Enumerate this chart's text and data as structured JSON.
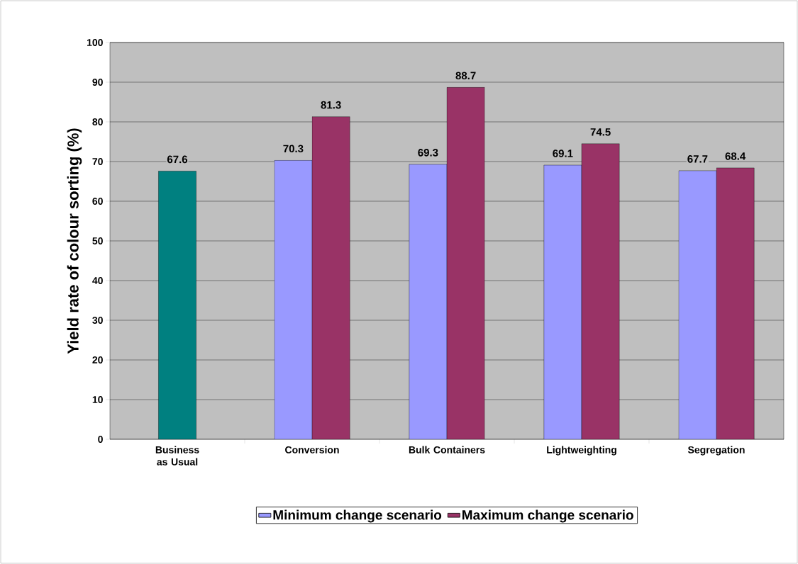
{
  "chart_data": {
    "type": "bar",
    "ylabel": "Yield rate of colour sorting (%)",
    "categories": [
      "Business as Usual",
      "Conversion",
      "Bulk Containers",
      "Lightweighting",
      "Segregation"
    ],
    "series": [
      {
        "color": "#008080",
        "values": [
          67.6,
          null,
          null,
          null,
          null
        ]
      },
      {
        "name": "Minimum change scenario",
        "color": "#9999ff",
        "values": [
          null,
          70.3,
          69.3,
          69.1,
          67.7
        ]
      },
      {
        "name": "Maximum change scenario",
        "color": "#993366",
        "values": [
          null,
          81.3,
          88.7,
          74.5,
          68.4
        ]
      }
    ],
    "ylim": [
      0,
      100
    ],
    "yticks": [
      0,
      10,
      20,
      30,
      40,
      50,
      60,
      70,
      80,
      90,
      100
    ],
    "grid": "y",
    "legend": "bottom",
    "data_labels": true
  }
}
